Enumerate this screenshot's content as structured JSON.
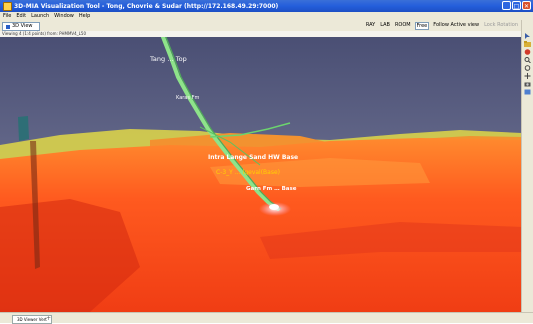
{
  "window": {
    "title": "3D-MIA Visualization Tool - Tong, Chovrie & Sudar (http://172.168.49.29:7000)",
    "controls": {
      "minimize": "_",
      "maximize": "□",
      "close": "✕"
    }
  },
  "menu": {
    "items": [
      "File",
      "Edit",
      "Launch",
      "Window",
      "Help"
    ]
  },
  "toolbar": {
    "view_tab": "3D View",
    "buttons": [
      "RAY",
      "LAB",
      "ROOM",
      "Free",
      "Follow Active view",
      "Lock Rotation"
    ],
    "active_button": "Free"
  },
  "status": {
    "text": "Viewing 4 (1:4 points) from: PHMMV4_L50"
  },
  "scene": {
    "labels": {
      "top": "Tang … Top",
      "upper": "Karas Fm",
      "hw_base": "Intra Lange Sand HW Base",
      "well": "C-3_Y … lgeval(Base)",
      "garn": "Garn Fm … Base"
    },
    "colors": {
      "sky_top": "#4a4f74",
      "sky_bottom": "#8487a4",
      "surface_main": "#ff5a1f",
      "surface_dark": "#d42a10",
      "surface_light": "#ff9a3c",
      "yellow_layer": "#e8e43a",
      "well_green": "#7fe07a",
      "label_yellow": "#ffd200"
    }
  },
  "sidebar": {
    "icons": [
      "select-icon",
      "folder-icon",
      "color-icon",
      "zoom-icon",
      "rotate-icon",
      "pan-icon",
      "camera-icon",
      "settings-icon"
    ]
  },
  "bottom": {
    "tab": "3D Viewer Vert",
    "add": "+"
  }
}
